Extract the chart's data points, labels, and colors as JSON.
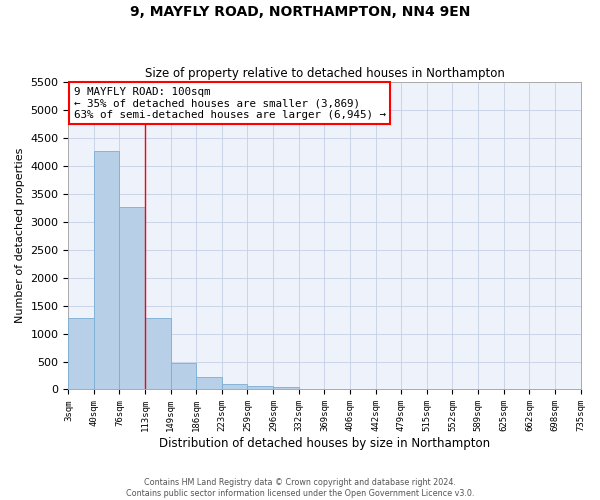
{
  "title": "9, MAYFLY ROAD, NORTHAMPTON, NN4 9EN",
  "subtitle": "Size of property relative to detached houses in Northampton",
  "xlabel": "Distribution of detached houses by size in Northampton",
  "ylabel": "Number of detached properties",
  "bar_color": "#b8cfe8",
  "bar_edge_color": "#7aadd4",
  "background_color": "#eef2fa",
  "grid_color": "#c5d0e4",
  "annotation_title": "9 MAYFLY ROAD: 100sqm",
  "annotation_line1": "← 35% of detached houses are smaller (3,869)",
  "annotation_line2": "63% of semi-detached houses are larger (6,945) →",
  "vline_x": 113,
  "bin_edges": [
    3,
    40,
    76,
    113,
    149,
    186,
    223,
    259,
    296,
    332,
    369,
    406,
    442,
    479,
    515,
    552,
    589,
    625,
    662,
    698,
    735
  ],
  "bin_counts": [
    1270,
    4270,
    3270,
    1270,
    470,
    230,
    95,
    60,
    45,
    0,
    0,
    0,
    0,
    0,
    0,
    0,
    0,
    0,
    0,
    0
  ],
  "ylim": [
    0,
    5500
  ],
  "yticks": [
    0,
    500,
    1000,
    1500,
    2000,
    2500,
    3000,
    3500,
    4000,
    4500,
    5000,
    5500
  ],
  "footnote1": "Contains HM Land Registry data © Crown copyright and database right 2024.",
  "footnote2": "Contains public sector information licensed under the Open Government Licence v3.0."
}
